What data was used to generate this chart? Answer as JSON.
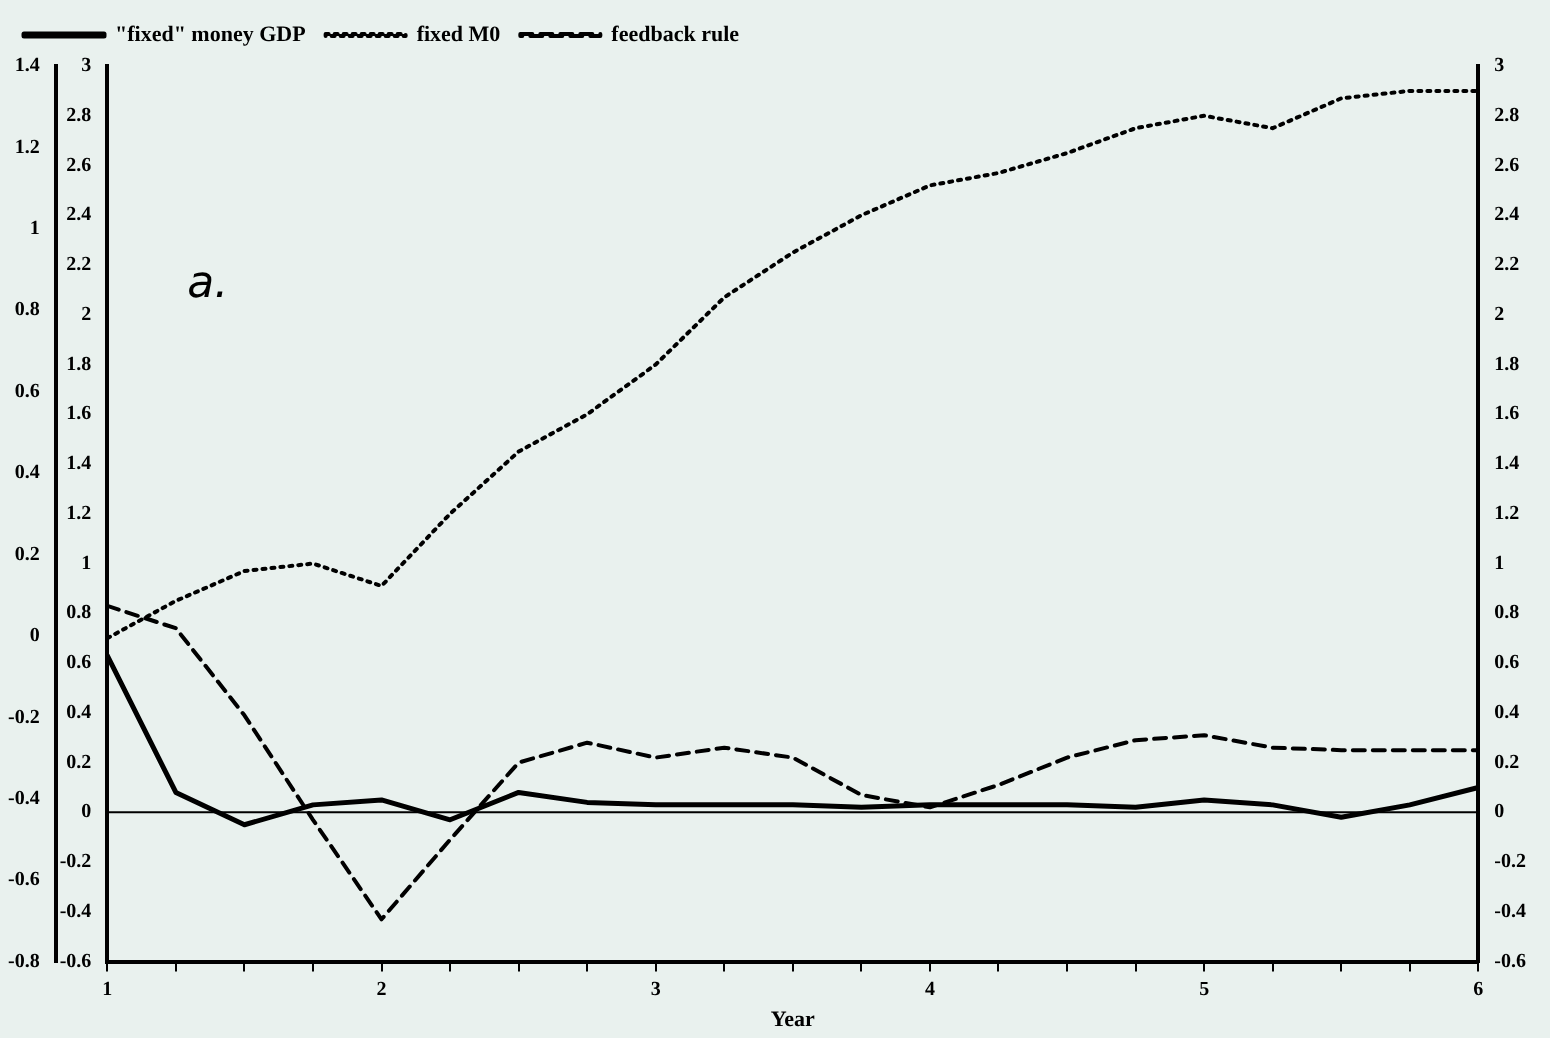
{
  "chart_data": {
    "type": "line",
    "xlabel": "Year",
    "legend": "top left",
    "marker": "none",
    "grid": false,
    "annotations": [
      "a."
    ],
    "x": [
      1,
      1.25,
      1.5,
      1.75,
      2,
      2.25,
      2.5,
      2.75,
      3,
      3.25,
      3.5,
      3.75,
      4,
      4.25,
      4.5,
      4.75,
      5,
      5.25,
      5.5,
      5.75,
      6
    ],
    "series": [
      {
        "name": "\"fixed\" money GDP",
        "color": "#000000",
        "line_style": "solid",
        "values": [
          0.63,
          0.08,
          -0.05,
          0.03,
          0.05,
          -0.03,
          0.08,
          0.04,
          0.03,
          0.03,
          0.03,
          0.02,
          0.03,
          0.03,
          0.03,
          0.02,
          0.05,
          0.03,
          -0.02,
          0.03,
          0.1
        ]
      },
      {
        "name": "fixed M0",
        "color": "#000000",
        "line_style": "dotted",
        "values": [
          0.7,
          0.85,
          0.97,
          1.0,
          0.91,
          1.2,
          1.45,
          1.6,
          1.8,
          2.07,
          2.25,
          2.4,
          2.52,
          2.57,
          2.65,
          2.75,
          2.8,
          2.75,
          2.87,
          2.9,
          2.9
        ]
      },
      {
        "name": "feedback rule",
        "color": "#000000",
        "line_style": "dashed",
        "values": [
          0.83,
          0.74,
          0.39,
          -0.03,
          -0.43,
          -0.11,
          0.2,
          0.28,
          0.22,
          0.26,
          0.22,
          0.07,
          0.02,
          0.11,
          0.22,
          0.29,
          0.31,
          0.26,
          0.25,
          0.25,
          0.25
        ]
      }
    ],
    "ref_lines": [
      {
        "axis": "y",
        "value": 0,
        "color": "#000000",
        "line_style": "solid"
      }
    ],
    "xlim": [
      1,
      6
    ],
    "xticks": [
      1,
      {
        "value": 1.25,
        "label": null
      },
      {
        "value": 1.5,
        "label": null
      },
      {
        "value": 1.75,
        "label": null
      },
      2,
      {
        "value": 2.25,
        "label": null
      },
      {
        "value": 2.5,
        "label": null
      },
      {
        "value": 2.75,
        "label": null
      },
      3,
      {
        "value": 3.25,
        "label": null
      },
      {
        "value": 3.5,
        "label": null
      },
      {
        "value": 3.75,
        "label": null
      },
      4,
      {
        "value": 4.25,
        "label": null
      },
      {
        "value": 4.5,
        "label": null
      },
      {
        "value": 4.75,
        "label": null
      },
      5,
      {
        "value": 5.25,
        "label": null
      },
      {
        "value": 5.5,
        "label": null
      },
      {
        "value": 5.75,
        "label": null
      },
      6
    ],
    "ylim": [
      -0.6,
      3
    ],
    "yticks": [
      -0.6,
      -0.4,
      -0.2,
      0,
      0.2,
      0.4,
      0.6,
      0.8,
      1,
      1.2,
      1.4,
      1.6,
      1.8,
      2,
      2.2,
      2.4,
      2.6,
      2.8,
      3
    ],
    "y2lim": [
      -0.6,
      3
    ],
    "y2ticks": [
      -0.6,
      -0.4,
      -0.2,
      0,
      0.2,
      0.4,
      0.6,
      0.8,
      1,
      1.2,
      1.4,
      1.6,
      1.8,
      2,
      2.2,
      2.4,
      2.6,
      2.8,
      3
    ],
    "y3lim": [
      -0.8,
      1.4
    ],
    "y3ticks": [
      -0.8,
      -0.6,
      -0.4,
      -0.2,
      0,
      0.2,
      0.4,
      0.6,
      0.8,
      1,
      1.2,
      1.4
    ]
  }
}
